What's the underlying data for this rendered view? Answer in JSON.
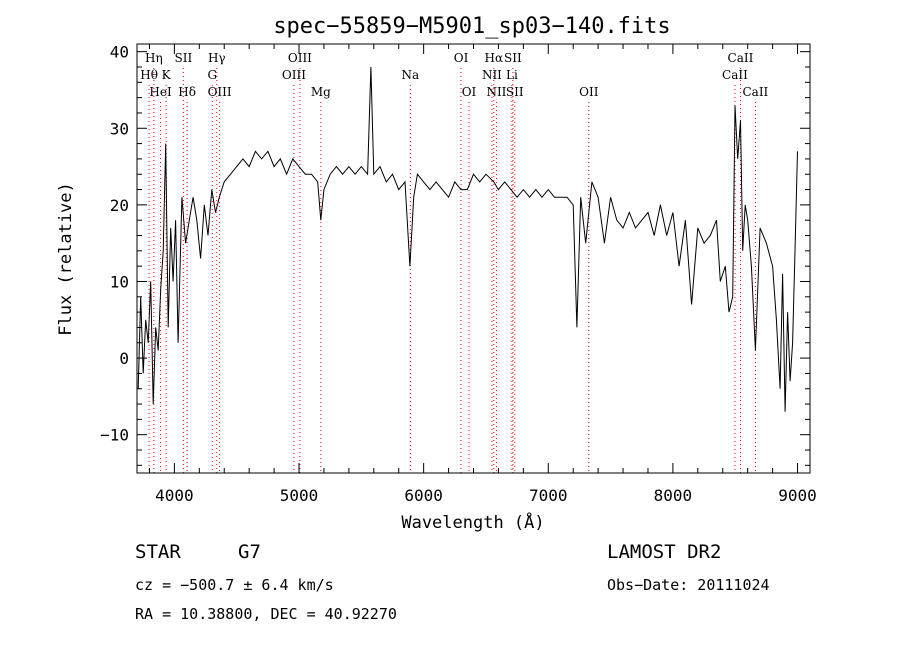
{
  "chart_data": {
    "type": "line",
    "title": "spec−55859−M5901_sp03−140.fits",
    "xlabel": "Wavelength (Å)",
    "ylabel": "Flux (relative)",
    "xlim": [
      3700,
      9100
    ],
    "ylim": [
      -15,
      41
    ],
    "x_ticks": [
      4000,
      5000,
      6000,
      7000,
      8000,
      9000
    ],
    "x_tick_labels": [
      "4000",
      "5000",
      "6000",
      "7000",
      "8000",
      "9000"
    ],
    "y_ticks": [
      -10,
      0,
      10,
      20,
      30,
      40
    ],
    "y_tick_labels": [
      "−10",
      "0",
      "10",
      "20",
      "30",
      "40"
    ],
    "grid": false,
    "line_color": "#000000",
    "marker_color": "#ff0000",
    "series": [
      {
        "x": [
          3710,
          3730,
          3750,
          3770,
          3790,
          3810,
          3830,
          3850,
          3870,
          3890,
          3910,
          3930,
          3950,
          3970,
          3990,
          4010,
          4030,
          4060,
          4090,
          4120,
          4150,
          4180,
          4210,
          4240,
          4270,
          4300,
          4330,
          4360,
          4400,
          4450,
          4500,
          4550,
          4600,
          4650,
          4700,
          4750,
          4800,
          4850,
          4900,
          4950,
          5000,
          5050,
          5100,
          5150,
          5175,
          5200,
          5250,
          5300,
          5350,
          5400,
          5450,
          5500,
          5550,
          5577,
          5600,
          5650,
          5700,
          5750,
          5800,
          5850,
          5890,
          5920,
          5950,
          6000,
          6050,
          6100,
          6150,
          6200,
          6250,
          6300,
          6350,
          6400,
          6450,
          6500,
          6563,
          6600,
          6650,
          6700,
          6750,
          6800,
          6850,
          6900,
          6950,
          7000,
          7050,
          7100,
          7150,
          7200,
          7230,
          7260,
          7300,
          7350,
          7400,
          7450,
          7500,
          7550,
          7600,
          7650,
          7700,
          7750,
          7800,
          7850,
          7900,
          7950,
          8000,
          8050,
          8100,
          8150,
          8200,
          8250,
          8300,
          8350,
          8380,
          8420,
          8450,
          8480,
          8498,
          8520,
          8542,
          8560,
          8580,
          8600,
          8630,
          8662,
          8700,
          8750,
          8800,
          8830,
          8860,
          8880,
          8900,
          8920,
          8940,
          8960,
          8980,
          9000
        ],
        "y": [
          -4,
          8,
          -2,
          5,
          2,
          10,
          -6,
          4,
          1,
          9,
          14,
          28,
          4,
          17,
          10,
          18,
          2,
          21,
          15,
          18,
          21,
          18,
          13,
          20,
          16,
          22,
          19,
          21,
          23,
          24,
          25,
          26,
          25,
          27,
          26,
          27,
          25,
          26,
          24,
          26,
          25,
          24,
          24,
          23,
          18,
          22,
          24,
          25,
          24,
          25,
          24,
          25,
          24,
          38,
          24,
          25,
          23,
          24,
          22,
          23,
          12,
          21,
          24,
          23,
          22,
          23,
          22,
          21,
          23,
          22,
          22,
          24,
          23,
          24,
          23,
          22,
          23,
          22,
          21,
          22,
          21,
          22,
          21,
          22,
          21,
          21,
          21,
          20,
          4,
          21,
          15,
          23,
          21,
          15,
          21,
          18,
          17,
          19,
          17,
          18,
          19,
          16,
          20,
          16,
          19,
          12,
          18,
          7,
          17,
          15,
          16,
          18,
          10,
          12,
          6,
          8,
          33,
          26,
          31,
          14,
          20,
          18,
          12,
          1,
          17,
          15,
          12,
          5,
          -4,
          11,
          -7,
          6,
          -3,
          2,
          14,
          27
        ],
        "line_markers": [
          {
            "label": "Hη",
            "x": 3835,
            "row": 1
          },
          {
            "label": "Hθ",
            "x": 3797,
            "row": 2
          },
          {
            "label": "HeI",
            "x": 3889,
            "row": 3
          },
          {
            "label": "K",
            "x": 3934,
            "row": 2
          },
          {
            "label": "SII",
            "x": 4072,
            "row": 1
          },
          {
            "label": "Hδ",
            "x": 4102,
            "row": 3
          },
          {
            "label": "Hγ",
            "x": 4340,
            "row": 1
          },
          {
            "label": "G",
            "x": 4304,
            "row": 2
          },
          {
            "label": "OIII",
            "x": 4363,
            "row": 3
          },
          {
            "label": "OIII",
            "x": 5007,
            "row": 1
          },
          {
            "label": "OIII",
            "x": 4959,
            "row": 2
          },
          {
            "label": "Mg",
            "x": 5175,
            "row": 3
          },
          {
            "label": "Na",
            "x": 5893,
            "row": 2
          },
          {
            "label": "OI",
            "x": 6300,
            "row": 1
          },
          {
            "label": "OI",
            "x": 6364,
            "row": 3
          },
          {
            "label": "Hα",
            "x": 6563,
            "row": 1
          },
          {
            "label": "SII",
            "x": 6716,
            "row": 1
          },
          {
            "label": "NII",
            "x": 6548,
            "row": 2
          },
          {
            "label": "Li",
            "x": 6708,
            "row": 2
          },
          {
            "label": "NII",
            "x": 6584,
            "row": 3
          },
          {
            "label": "SII",
            "x": 6731,
            "row": 3
          },
          {
            "label": "OII",
            "x": 7325,
            "row": 3
          },
          {
            "label": "CaII",
            "x": 8542,
            "row": 1
          },
          {
            "label": "CaII",
            "x": 8498,
            "row": 2
          },
          {
            "label": "CaII",
            "x": 8662,
            "row": 3
          }
        ]
      }
    ]
  },
  "info": {
    "object_class": "STAR",
    "subclass": "G7",
    "survey": "LAMOST DR2",
    "redshift_text": "cz = −500.7 ± 6.4 km/s",
    "obs_date_text": "Obs−Date: 20111024",
    "coords_text": "RA =  10.38800, DEC =  40.92270"
  }
}
